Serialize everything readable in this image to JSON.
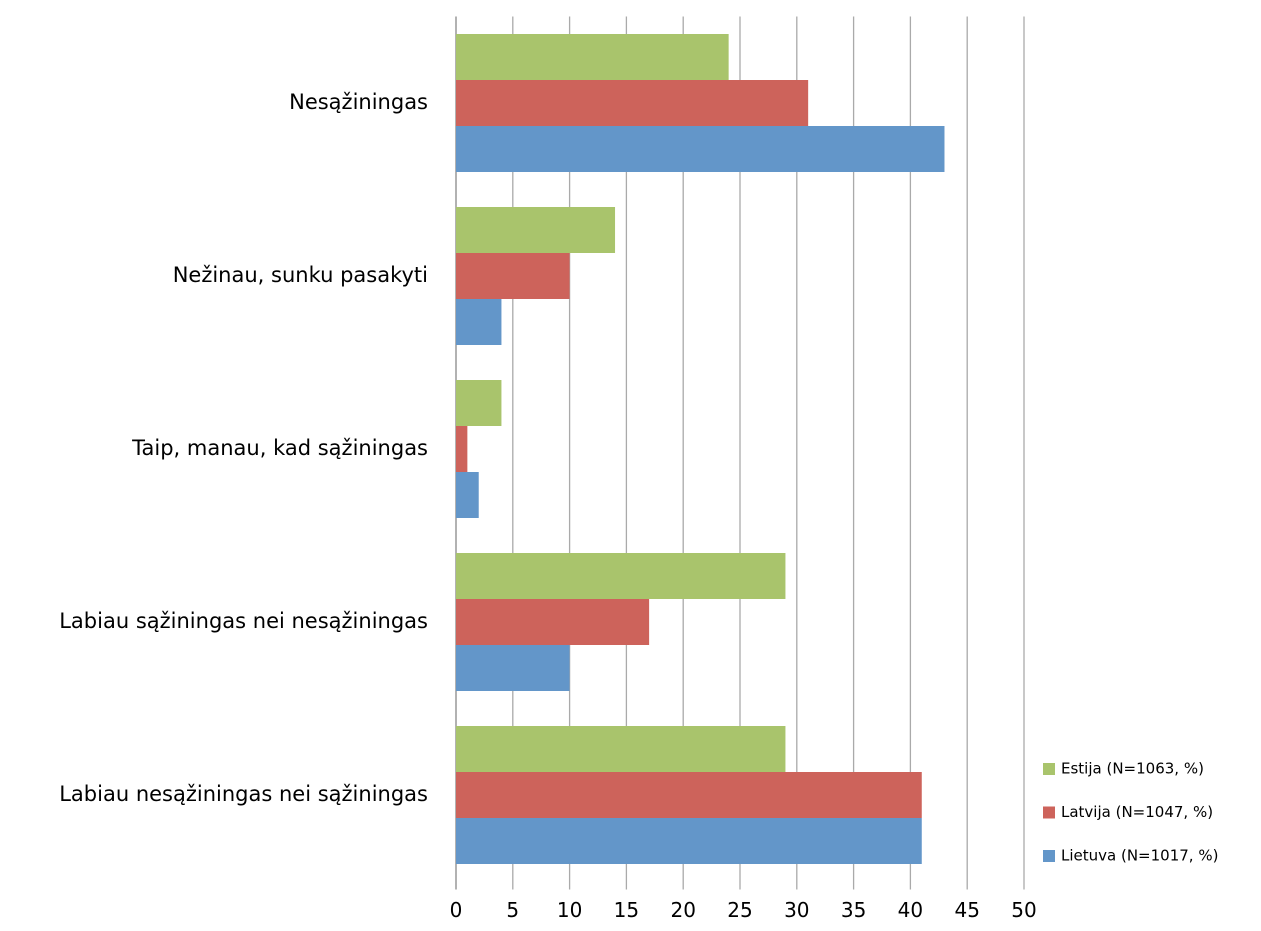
{
  "chart_data": {
    "type": "bar",
    "orientation": "horizontal",
    "categories": [
      "Nesąžiningas",
      "Nežinau, sunku pasakyti",
      "Taip, manau, kad sąžiningas",
      "Labiau sąžiningas nei nesąžiningas",
      "Labiau nesąžiningas nei sąžiningas"
    ],
    "series": [
      {
        "name": "Estija (N=1063, %)",
        "color": "#a9c46c",
        "values": [
          24,
          14,
          4,
          29,
          29
        ]
      },
      {
        "name": "Latvija (N=1047, %)",
        "color": "#cd635b",
        "values": [
          31,
          10,
          1,
          17,
          41
        ]
      },
      {
        "name": "Lietuva (N=1017, %)",
        "color": "#6396c9",
        "values": [
          43,
          4,
          2,
          10,
          41
        ]
      }
    ],
    "xlim": [
      0,
      50
    ],
    "xticks": [
      0,
      5,
      10,
      15,
      20,
      25,
      30,
      35,
      40,
      45,
      50
    ],
    "grid": true,
    "legend": "lower right"
  }
}
